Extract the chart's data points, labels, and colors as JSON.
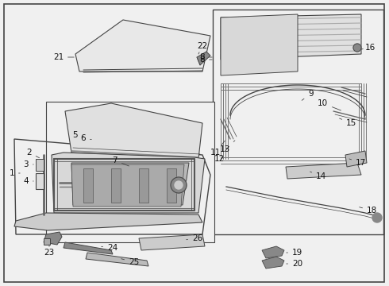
{
  "bg_color": "#f0f0f0",
  "line_color": "#444444",
  "label_color": "#111111",
  "font_size": 7.5,
  "white": "#ffffff",
  "light_gray": "#cccccc",
  "mid_gray": "#999999",
  "dark_gray": "#666666"
}
